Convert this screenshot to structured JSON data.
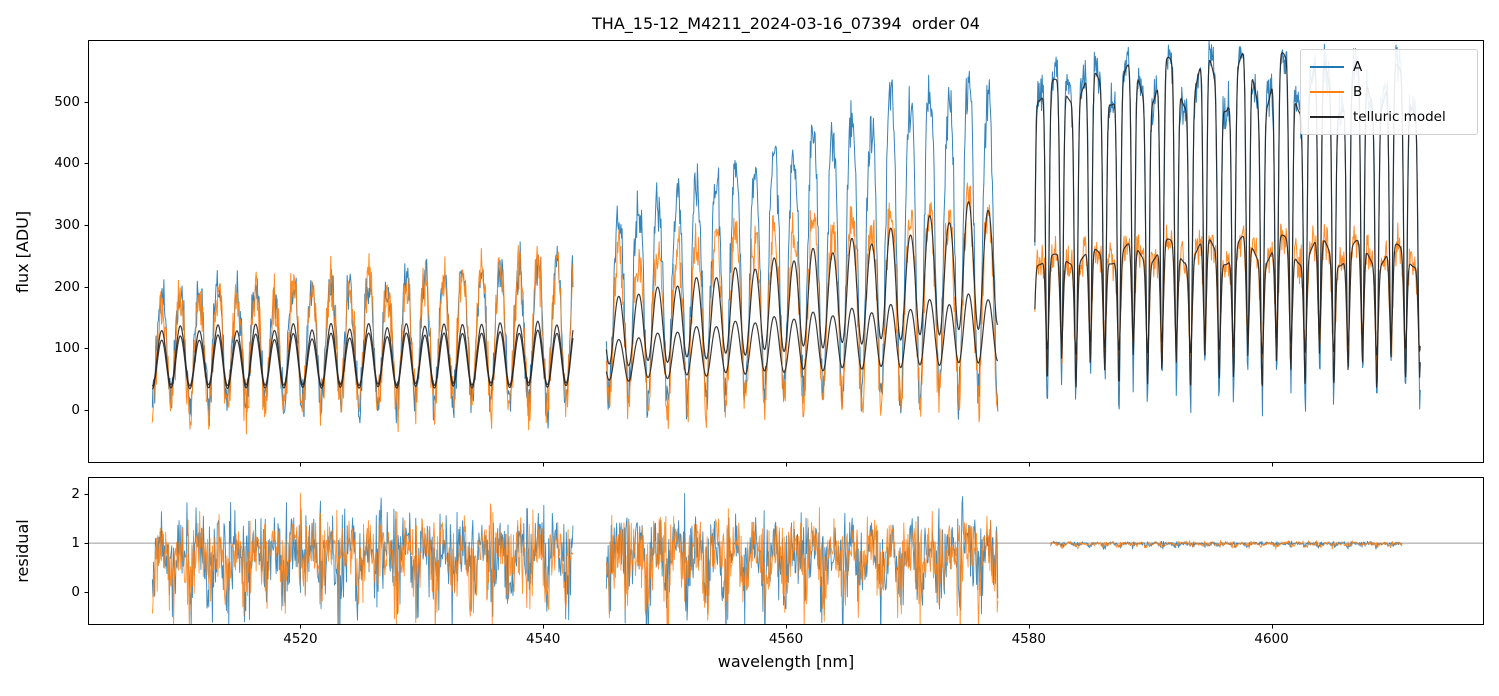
{
  "chart_data": {
    "type": "line",
    "title": "THA_15-12_M4211_2024-03-16_07394  order 04",
    "xlabel": "wavelength [nm]",
    "xlim": [
      4502.5,
      4617.5
    ],
    "xticks": [
      4520,
      4540,
      4560,
      4580,
      4600
    ],
    "panels": {
      "flux": {
        "ylabel": "flux [ADU]",
        "ylim": [
          -86,
          600
        ],
        "yticks": [
          0,
          100,
          200,
          300,
          400,
          500
        ]
      },
      "residual": {
        "ylabel": "residual",
        "ylim": [
          -0.67,
          2.35
        ],
        "yticks": [
          0,
          1,
          2
        ],
        "hline": 1.0
      }
    },
    "legend": [
      {
        "label": "A",
        "color": "#1f77b4"
      },
      {
        "label": "B",
        "color": "#ff7f0e"
      },
      {
        "label": "telluric model",
        "color": "#262626"
      }
    ],
    "colors": {
      "A": "#1f77b4",
      "B": "#ff7f0e",
      "model": "#262626",
      "hline": "#9a9a9a",
      "spine": "#000000"
    },
    "seed": 20240316,
    "sample_step_nm": 0.05,
    "segments": [
      {
        "xstart": 4507.8,
        "xend": 4542.5,
        "telluric": {
          "period": 1.55,
          "phase": 0.0
        },
        "curves": [
          {
            "role": "A",
            "cont": [
              [
                4507.8,
                185
              ],
              [
                4516,
                192
              ],
              [
                4524,
                202
              ],
              [
                4532,
                216
              ],
              [
                4542.5,
                240
              ]
            ],
            "noise": 48,
            "depth": 0.95,
            "sharp": 1.3
          },
          {
            "role": "B",
            "cont": [
              [
                4507.8,
                168
              ],
              [
                4516,
                182
              ],
              [
                4524,
                196
              ],
              [
                4532,
                212
              ],
              [
                4542.5,
                238
              ]
            ],
            "noise": 55,
            "depth": 0.97,
            "sharp": 1.3
          },
          {
            "role": "modelA",
            "cont": [
              [
                4507.8,
                132
              ],
              [
                4525,
                136
              ],
              [
                4542.5,
                142
              ]
            ],
            "noise": 0,
            "depth": 0.7,
            "sharp": 1.0
          },
          {
            "role": "modelB",
            "cont": [
              [
                4507.8,
                116
              ],
              [
                4525,
                121
              ],
              [
                4542.5,
                128
              ]
            ],
            "noise": 0,
            "depth": 0.7,
            "sharp": 1.0
          }
        ],
        "residual_noise": 0.85
      },
      {
        "xstart": 4545.2,
        "xend": 4577.5,
        "telluric": {
          "period": 1.6,
          "phase": 0.35
        },
        "curves": [
          {
            "role": "A",
            "cont": [
              [
                4545.2,
                295
              ],
              [
                4552,
                345
              ],
              [
                4558,
                395
              ],
              [
                4564,
                445
              ],
              [
                4570,
                495
              ],
              [
                4577.5,
                520
              ]
            ],
            "noise": 52,
            "depth": 0.95,
            "sharp": 1.5
          },
          {
            "role": "B",
            "cont": [
              [
                4545.2,
                238
              ],
              [
                4554,
                268
              ],
              [
                4562,
                292
              ],
              [
                4570,
                312
              ],
              [
                4577.5,
                328
              ]
            ],
            "noise": 55,
            "depth": 0.96,
            "sharp": 1.5
          },
          {
            "role": "modelA",
            "cont": [
              [
                4545.2,
                178
              ],
              [
                4552,
                208
              ],
              [
                4558,
                236
              ],
              [
                4564,
                263
              ],
              [
                4570,
                292
              ],
              [
                4577.5,
                342
              ]
            ],
            "noise": 0,
            "depth": 0.6,
            "sharp": 1.1
          },
          {
            "role": "modelB",
            "cont": [
              [
                4545.2,
                110
              ],
              [
                4554,
                137
              ],
              [
                4562,
                154
              ],
              [
                4570,
                168
              ],
              [
                4577.5,
                188
              ]
            ],
            "noise": 0,
            "depth": 0.58,
            "sharp": 1.1
          }
        ],
        "residual_noise": 0.85
      },
      {
        "xstart": 4580.5,
        "xend": 4612.3,
        "telluric": {
          "period": 1.18,
          "phase": 0.6,
          "period2": 3.05,
          "depth2": 0.1
        },
        "curves": [
          {
            "role": "A",
            "cont": [
              [
                4580.5,
                548
              ],
              [
                4590,
                562
              ],
              [
                4600,
                562
              ],
              [
                4612.3,
                548
              ]
            ],
            "noise": 45,
            "depth": 0.88,
            "sharp": 4.0
          },
          {
            "role": "B",
            "cont": [
              [
                4580.5,
                256
              ],
              [
                4590,
                272
              ],
              [
                4602,
                276
              ],
              [
                4612.3,
                262
              ]
            ],
            "noise": 40,
            "depth": 0.58,
            "sharp": 4.0
          },
          {
            "role": "modelA",
            "cont": [
              [
                4580.5,
                542
              ],
              [
                4590,
                558
              ],
              [
                4600,
                558
              ],
              [
                4612.3,
                546
              ]
            ],
            "noise": 0,
            "depth": 0.84,
            "sharp": 4.0
          },
          {
            "role": "modelB",
            "cont": [
              [
                4580.5,
                254
              ],
              [
                4590,
                270
              ],
              [
                4602,
                273
              ],
              [
                4612.3,
                261
              ]
            ],
            "noise": 0,
            "depth": 0.56,
            "sharp": 4.0
          }
        ],
        "residual_noise": 0.055,
        "res_xstart": 4581.8,
        "res_xend": 4610.8
      }
    ]
  }
}
